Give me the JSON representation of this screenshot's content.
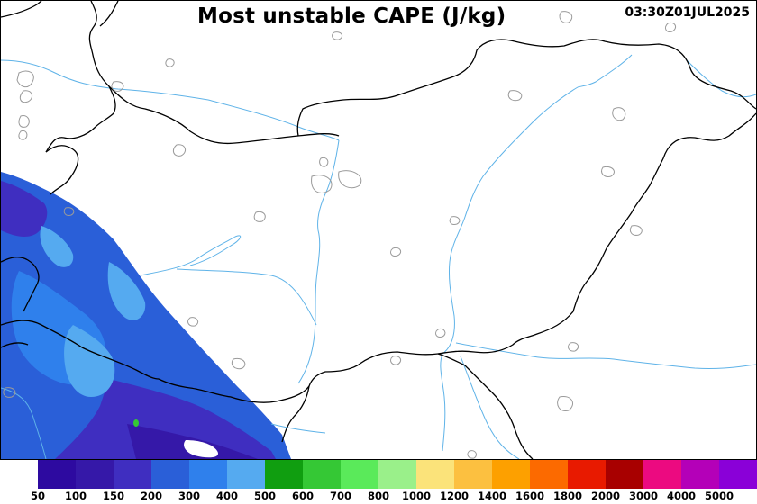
{
  "title": "Most unstable CAPE (J/kg)",
  "timestamp": "03:30Z01JUL2025",
  "legend": {
    "colors": [
      "#2d0aa0",
      "#3518a8",
      "#3f2ec0",
      "#2a5fd8",
      "#2f80ec",
      "#55aaf0",
      "#109e10",
      "#35c835",
      "#5aea5a",
      "#9af08a",
      "#fbe37a",
      "#fcc040",
      "#fda000",
      "#fc6a00",
      "#e81a00",
      "#a80000",
      "#ec0a80",
      "#b400b8",
      "#8a00d8"
    ],
    "labels": [
      "50",
      "100",
      "150",
      "200",
      "300",
      "400",
      "500",
      "600",
      "700",
      "800",
      "1000",
      "1200",
      "1400",
      "1600",
      "1800",
      "2000",
      "3000",
      "4000",
      "5000"
    ]
  },
  "map": {
    "border_color": "#000000",
    "river_color": "#5fb3e8",
    "lake_color": "#9a9a9a",
    "cape_fill_levels": [
      "#2a5fd8",
      "#2f80ec",
      "#55aaf0",
      "#3f2ec0",
      "#3518a8",
      "#109e10"
    ]
  }
}
